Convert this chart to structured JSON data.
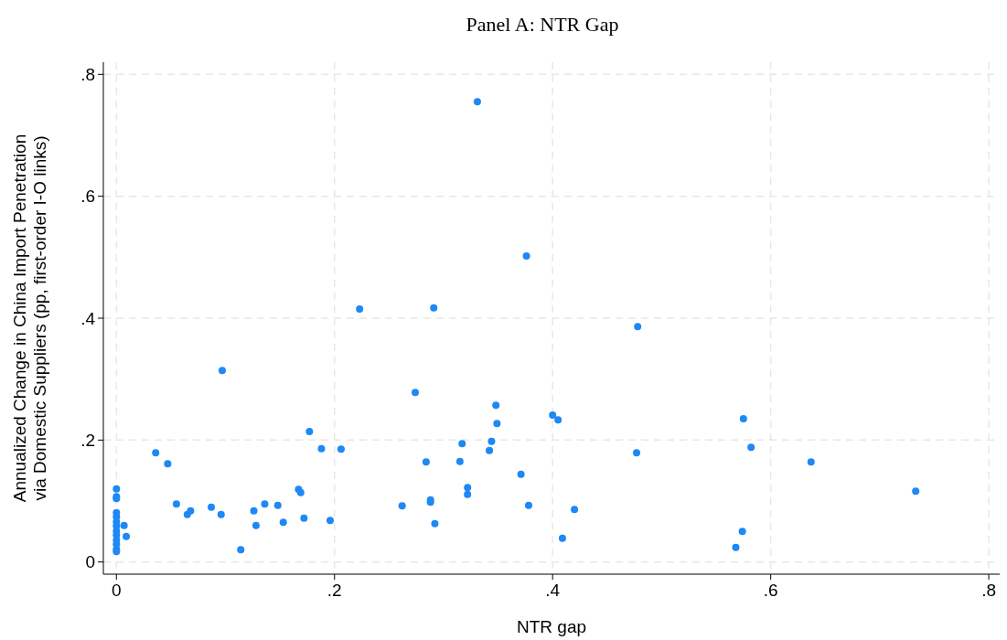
{
  "chart_data": {
    "type": "scatter",
    "title": "Panel A: NTR Gap",
    "xlabel": "NTR gap",
    "ylabel": "Annualized Change in China Import Penetration\nvia Domestic Suppliers (pp, first-order I-O links)",
    "x": [
      0,
      0,
      0,
      0,
      0,
      0,
      0,
      0,
      0,
      0,
      0,
      0,
      0,
      0.007,
      0.009,
      0.036,
      0.047,
      0.055,
      0.065,
      0.068,
      0.087,
      0.096,
      0.097,
      0.114,
      0.126,
      0.128,
      0.136,
      0.148,
      0.153,
      0.167,
      0.169,
      0.172,
      0.177,
      0.188,
      0.196,
      0.206,
      0.223,
      0.262,
      0.274,
      0.284,
      0.288,
      0.288,
      0.291,
      0.292,
      0.315,
      0.317,
      0.322,
      0.322,
      0.331,
      0.342,
      0.344,
      0.348,
      0.349,
      0.371,
      0.376,
      0.378,
      0.4,
      0.405,
      0.409,
      0.42,
      0.478,
      0.477,
      0.568,
      0.574,
      0.575,
      0.582,
      0.637,
      0.733
    ],
    "series": [
      {
        "color": "#1e88f5",
        "values": [
          0.12,
          0.107,
          0.104,
          0.081,
          0.074,
          0.066,
          0.059,
          0.051,
          0.044,
          0.036,
          0.029,
          0.021,
          0.017,
          0.06,
          0.042,
          0.179,
          0.161,
          0.095,
          0.078,
          0.084,
          0.09,
          0.078,
          0.314,
          0.02,
          0.084,
          0.06,
          0.095,
          0.093,
          0.065,
          0.119,
          0.114,
          0.072,
          0.214,
          0.186,
          0.068,
          0.185,
          0.415,
          0.092,
          0.278,
          0.164,
          0.102,
          0.098,
          0.417,
          0.063,
          0.165,
          0.194,
          0.122,
          0.111,
          0.755,
          0.183,
          0.198,
          0.257,
          0.227,
          0.144,
          0.502,
          0.093,
          0.241,
          0.233,
          0.039,
          0.086,
          0.386,
          0.179,
          0.024,
          0.05,
          0.235,
          0.188,
          0.164,
          0.116
        ]
      }
    ],
    "marker": "circle",
    "grid": true,
    "xlim": [
      -0.012,
      0.81
    ],
    "ylim": [
      -0.02,
      0.82
    ],
    "xticks": [
      {
        "value": 0,
        "label": "0"
      },
      {
        "value": 0.2,
        "label": ".2"
      },
      {
        "value": 0.4,
        "label": ".4"
      },
      {
        "value": 0.6,
        "label": ".6"
      },
      {
        "value": 0.8,
        "label": ".8"
      }
    ],
    "yticks": [
      {
        "value": 0,
        "label": "0"
      },
      {
        "value": 0.2,
        "label": ".2"
      },
      {
        "value": 0.4,
        "label": ".4"
      },
      {
        "value": 0.6,
        "label": ".6"
      },
      {
        "value": 0.8,
        "label": ".8"
      }
    ]
  }
}
